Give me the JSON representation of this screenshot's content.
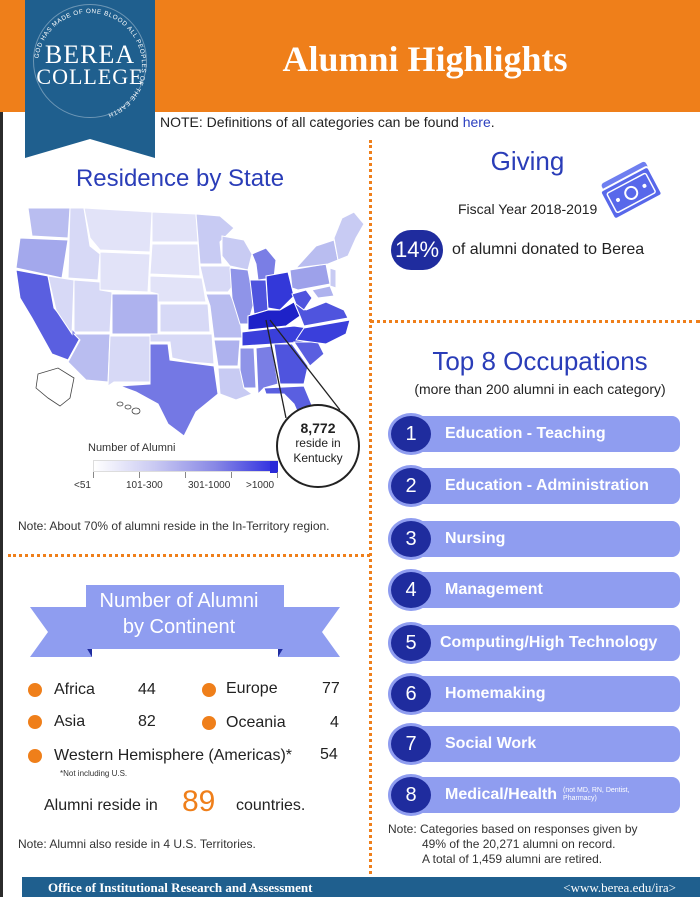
{
  "header": {
    "title": "Alumni Highlights",
    "logo": {
      "line1": "BEREA",
      "line2": "COLLEGE",
      "motto": "GOD HAS MADE OF ONE BLOOD ALL PEOPLES OF THE EARTH"
    },
    "note_prefix": "NOTE: Definitions of all categories can be found ",
    "note_link": "here",
    "note_suffix": "."
  },
  "residence": {
    "title": "Residence by State",
    "callout": {
      "number": "8,772",
      "line1": "reside in",
      "line2": "Kentucky"
    },
    "legend": {
      "title": "Number of Alumni",
      "labels": [
        "<51",
        "101-300",
        "301-1000",
        ">1000"
      ]
    },
    "note": "Note: About 70% of alumni reside in the In-Territory region."
  },
  "continents": {
    "title_line1": "Number of Alumni",
    "title_line2": "by Continent",
    "items": [
      {
        "name": "Africa",
        "value": "44"
      },
      {
        "name": "Europe",
        "value": "77"
      },
      {
        "name": "Asia",
        "value": "82"
      },
      {
        "name": "Oceania",
        "value": "4"
      },
      {
        "name": "Western Hemisphere (Americas)*",
        "value": "54"
      }
    ],
    "footnote": "*Not including U.S.",
    "reside_prefix": "Alumni reside in",
    "reside_count": "89",
    "reside_suffix": "countries.",
    "note": "Note: Alumni also reside in 4 U.S. Territories."
  },
  "giving": {
    "title": "Giving",
    "fiscal_year": "Fiscal Year 2018-2019",
    "percent": "14%",
    "text": "of alumni donated to Berea"
  },
  "occupations": {
    "title": "Top 8 Occupations",
    "subtitle": "(more than 200 alumni in each category)",
    "items": [
      {
        "rank": "1",
        "label": "Education - Teaching"
      },
      {
        "rank": "2",
        "label": "Education - Administration"
      },
      {
        "rank": "3",
        "label": "Nursing"
      },
      {
        "rank": "4",
        "label": "Management"
      },
      {
        "rank": "5",
        "label": "Computing/High Technology"
      },
      {
        "rank": "6",
        "label": "Homemaking"
      },
      {
        "rank": "7",
        "label": "Social Work"
      },
      {
        "rank": "8",
        "label": "Medical/Health",
        "note_line1": "(not MD, RN, Dentist,",
        "note_line2": "Pharmacy)"
      }
    ],
    "note_line1": "Note: Categories based on responses given by",
    "note_line2": "49% of the 20,271 alumni on record.",
    "note_line3": "A total of 1,459 alumni are retired."
  },
  "footer": {
    "left": "Office of Institutional Research and Assessment",
    "right": "<www.berea.edu/ira>"
  },
  "colors": {
    "orange": "#ef7f1a",
    "navy": "#1f2c9e",
    "periwinkle": "#8f9df0",
    "banner_blue": "#1f5f8e",
    "title_blue": "#2a3db8"
  }
}
